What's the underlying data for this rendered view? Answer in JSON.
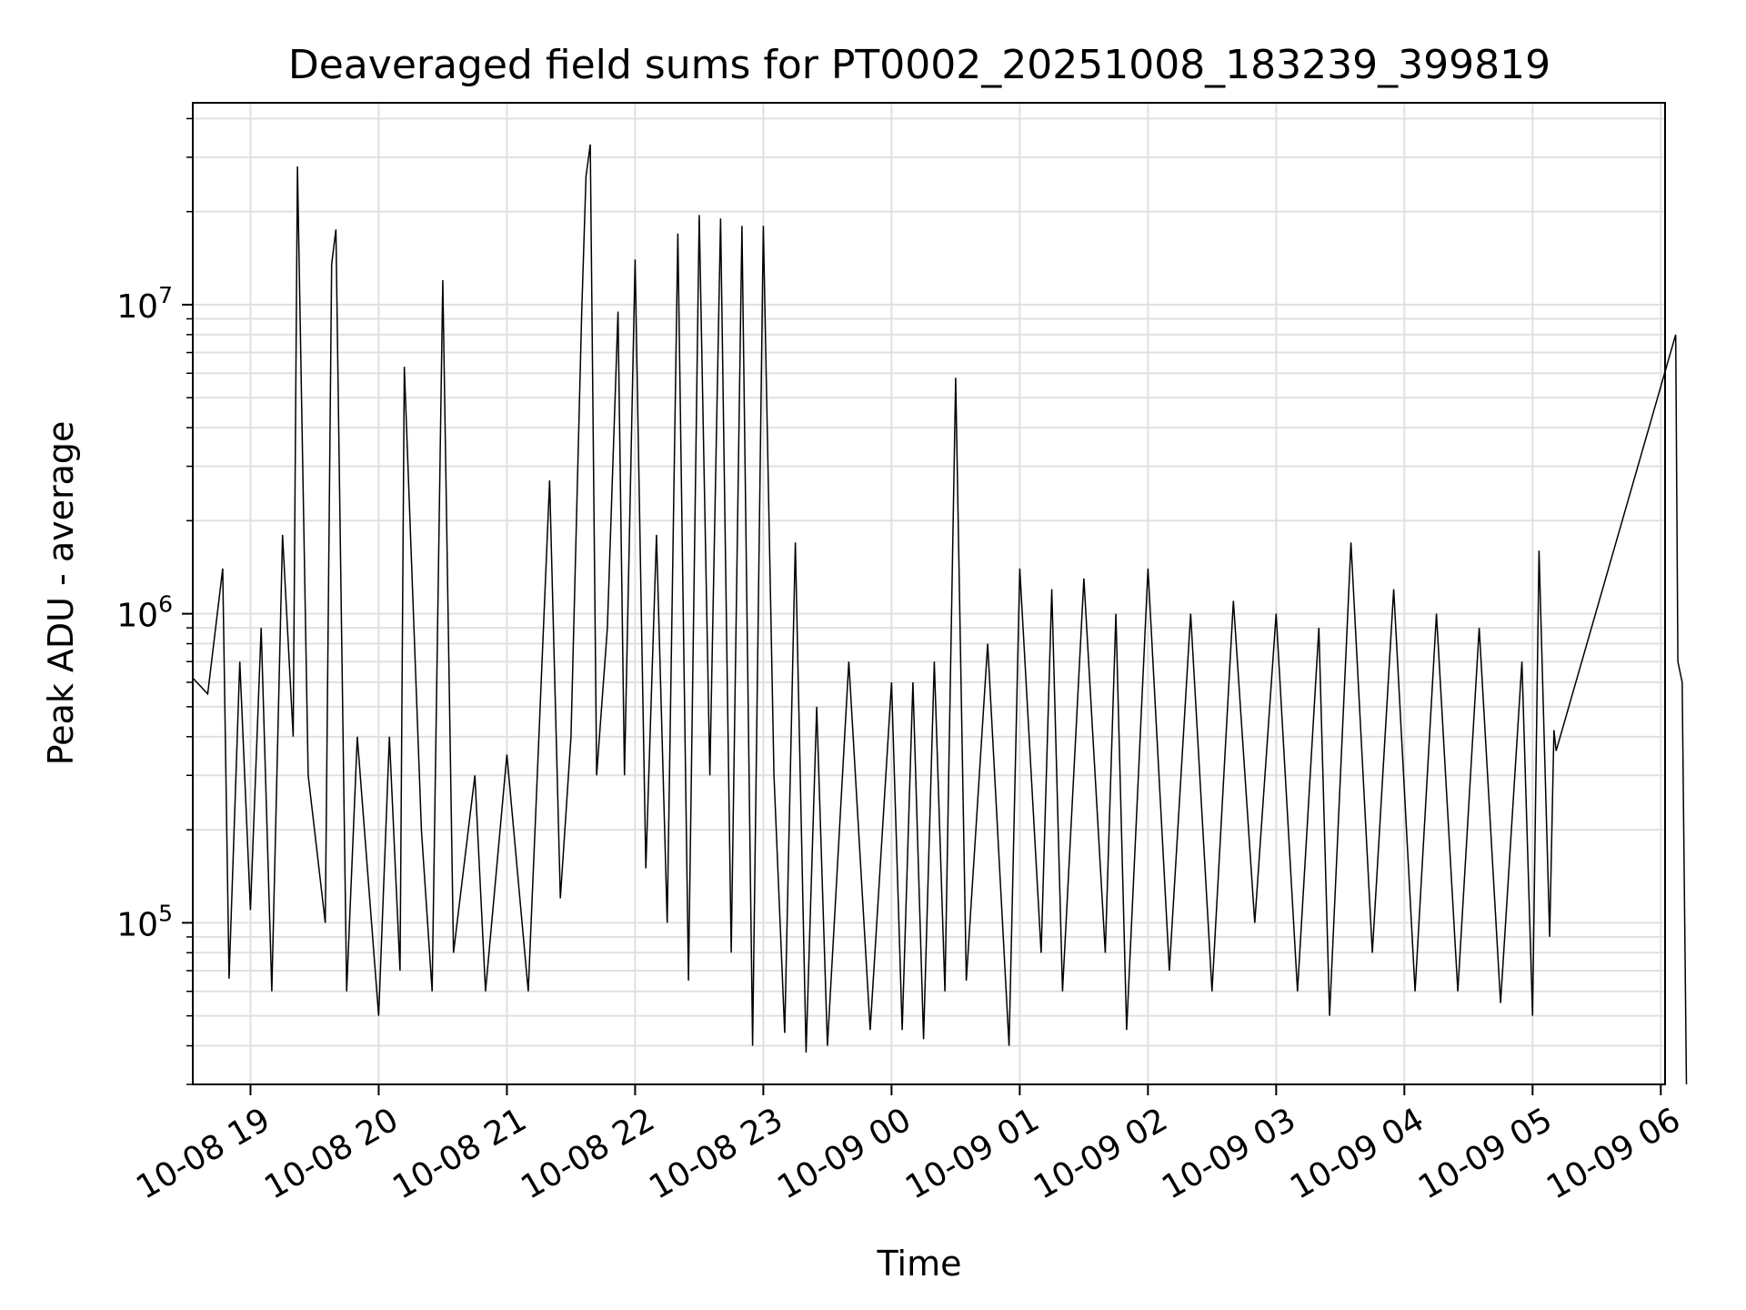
{
  "chart_data": {
    "type": "line",
    "title": "Deaveraged field sums for PT0002_20251008_183239_399819",
    "xlabel": "Time",
    "ylabel": "Peak ADU - average",
    "yscale": "log",
    "ylim": [
      30000,
      45000000
    ],
    "xlim": [
      "10-08 18:33",
      "10-09 06:02"
    ],
    "grid": true,
    "line_color": "#000000",
    "grid_color": "#e0e0e0",
    "x_tick_labels": [
      "10-08 19",
      "10-08 20",
      "10-08 21",
      "10-08 22",
      "10-08 23",
      "10-09 00",
      "10-09 01",
      "10-09 02",
      "10-09 03",
      "10-09 04",
      "10-09 05",
      "10-09 06"
    ],
    "y_tick_labels": [
      {
        "base": "10",
        "exp": "5",
        "value": 100000
      },
      {
        "base": "10",
        "exp": "6",
        "value": 1000000
      },
      {
        "base": "10",
        "exp": "7",
        "value": 10000000
      }
    ],
    "series": [
      {
        "points": [
          [
            "10-08 18:33",
            620000
          ],
          [
            "10-08 18:40",
            550000
          ],
          [
            "10-08 18:47",
            1400000
          ],
          [
            "10-08 18:50",
            66000
          ],
          [
            "10-08 18:55",
            700000
          ],
          [
            "10-08 19:00",
            110000
          ],
          [
            "10-08 19:05",
            900000
          ],
          [
            "10-08 19:10",
            60000
          ],
          [
            "10-08 19:15",
            1800000
          ],
          [
            "10-08 19:20",
            400000
          ],
          [
            "10-08 19:22",
            28000000
          ],
          [
            "10-08 19:27",
            300000
          ],
          [
            "10-08 19:35",
            100000
          ],
          [
            "10-08 19:38",
            13500000
          ],
          [
            "10-08 19:40",
            17500000
          ],
          [
            "10-08 19:45",
            60000
          ],
          [
            "10-08 19:50",
            400000
          ],
          [
            "10-08 20:00",
            50000
          ],
          [
            "10-08 20:05",
            400000
          ],
          [
            "10-08 20:10",
            70000
          ],
          [
            "10-08 20:12",
            6300000
          ],
          [
            "10-08 20:20",
            200000
          ],
          [
            "10-08 20:25",
            60000
          ],
          [
            "10-08 20:30",
            12000000
          ],
          [
            "10-08 20:35",
            80000
          ],
          [
            "10-08 20:45",
            300000
          ],
          [
            "10-08 20:50",
            60000
          ],
          [
            "10-08 21:00",
            350000
          ],
          [
            "10-08 21:10",
            60000
          ],
          [
            "10-08 21:20",
            2700000
          ],
          [
            "10-08 21:25",
            120000
          ],
          [
            "10-08 21:30",
            400000
          ],
          [
            "10-08 21:35",
            9500000
          ],
          [
            "10-08 21:37",
            26000000
          ],
          [
            "10-08 21:39",
            33000000
          ],
          [
            "10-08 21:42",
            300000
          ],
          [
            "10-08 21:47",
            900000
          ],
          [
            "10-08 21:52",
            9500000
          ],
          [
            "10-08 21:55",
            300000
          ],
          [
            "10-08 22:00",
            14000000
          ],
          [
            "10-08 22:05",
            150000
          ],
          [
            "10-08 22:10",
            1800000
          ],
          [
            "10-08 22:15",
            100000
          ],
          [
            "10-08 22:20",
            17000000
          ],
          [
            "10-08 22:25",
            65000
          ],
          [
            "10-08 22:30",
            19500000
          ],
          [
            "10-08 22:35",
            300000
          ],
          [
            "10-08 22:40",
            19000000
          ],
          [
            "10-08 22:45",
            80000
          ],
          [
            "10-08 22:50",
            18000000
          ],
          [
            "10-08 22:55",
            40000
          ],
          [
            "10-08 23:00",
            18000000
          ],
          [
            "10-08 23:05",
            300000
          ],
          [
            "10-08 23:10",
            44000
          ],
          [
            "10-08 23:15",
            1700000
          ],
          [
            "10-08 23:20",
            38000
          ],
          [
            "10-08 23:25",
            500000
          ],
          [
            "10-08 23:30",
            40000
          ],
          [
            "10-08 23:40",
            700000
          ],
          [
            "10-08 23:50",
            45000
          ],
          [
            "10-09 00:00",
            600000
          ],
          [
            "10-09 00:05",
            45000
          ],
          [
            "10-09 00:10",
            600000
          ],
          [
            "10-09 00:15",
            42000
          ],
          [
            "10-09 00:20",
            700000
          ],
          [
            "10-09 00:25",
            60000
          ],
          [
            "10-09 00:30",
            5800000
          ],
          [
            "10-09 00:35",
            65000
          ],
          [
            "10-09 00:45",
            800000
          ],
          [
            "10-09 00:55",
            40000
          ],
          [
            "10-09 01:00",
            1400000
          ],
          [
            "10-09 01:10",
            80000
          ],
          [
            "10-09 01:15",
            1200000
          ],
          [
            "10-09 01:20",
            60000
          ],
          [
            "10-09 01:30",
            1300000
          ],
          [
            "10-09 01:40",
            80000
          ],
          [
            "10-09 01:45",
            1000000
          ],
          [
            "10-09 01:50",
            45000
          ],
          [
            "10-09 02:00",
            1400000
          ],
          [
            "10-09 02:10",
            70000
          ],
          [
            "10-09 02:20",
            1000000
          ],
          [
            "10-09 02:30",
            60000
          ],
          [
            "10-09 02:40",
            1100000
          ],
          [
            "10-09 02:50",
            100000
          ],
          [
            "10-09 03:00",
            1000000
          ],
          [
            "10-09 03:10",
            60000
          ],
          [
            "10-09 03:20",
            900000
          ],
          [
            "10-09 03:25",
            50000
          ],
          [
            "10-09 03:35",
            1700000
          ],
          [
            "10-09 03:45",
            80000
          ],
          [
            "10-09 03:55",
            1200000
          ],
          [
            "10-09 04:05",
            60000
          ],
          [
            "10-09 04:15",
            1000000
          ],
          [
            "10-09 04:25",
            60000
          ],
          [
            "10-09 04:35",
            900000
          ],
          [
            "10-09 04:45",
            55000
          ],
          [
            "10-09 04:55",
            700000
          ],
          [
            "10-09 05:00",
            50000
          ],
          [
            "10-09 05:03",
            1600000
          ],
          [
            "10-09 05:08",
            90000
          ],
          [
            "10-09 05:10",
            420000
          ],
          [
            "10-09 05:11",
            360000
          ],
          [
            "10-09 06:07",
            8000000
          ],
          [
            "10-09 06:08",
            700000
          ],
          [
            "10-09 06:10",
            600000
          ],
          [
            "10-09 06:12",
            30000
          ]
        ]
      }
    ]
  }
}
